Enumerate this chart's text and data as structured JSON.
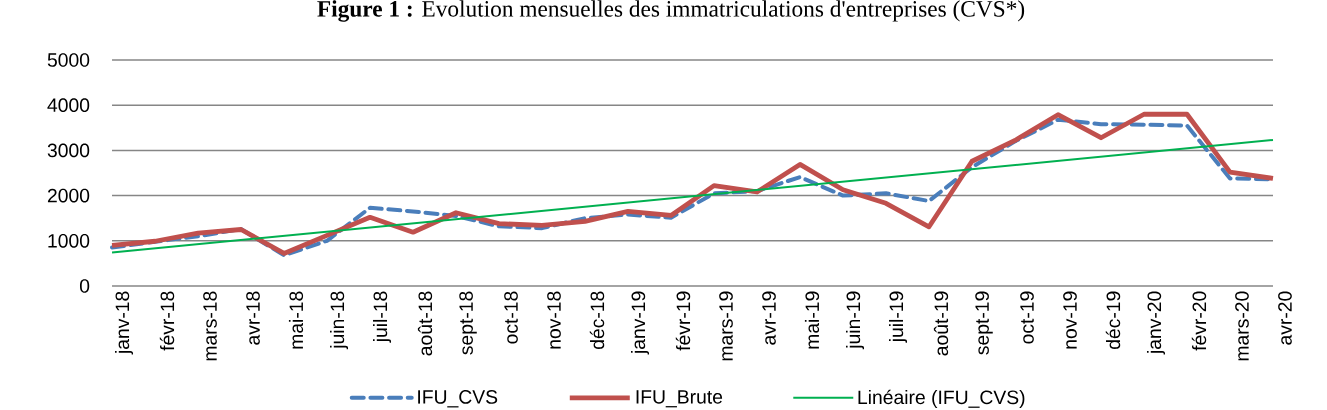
{
  "chart_data": {
    "type": "line",
    "title": "**Figure 1 :** Evolution mensuelles des immatriculations d'entreprises (CVS*)",
    "categories": [
      "janv-18",
      "févr-18",
      "mars-18",
      "avr-18",
      "mai-18",
      "juin-18",
      "juil-18",
      "août-18",
      "sept-18",
      "oct-18",
      "nov-18",
      "déc-18",
      "janv-19",
      "févr-19",
      "mars-19",
      "avr-19",
      "mai-19",
      "juin-19",
      "juil-19",
      "août-19",
      "sept-19",
      "oct-19",
      "nov-19",
      "déc-19",
      "janv-20",
      "févr-20",
      "mars-20",
      "avr-20"
    ],
    "series": [
      {
        "name": "IFU_CVS",
        "color": "#4a7ebb",
        "line_style": "dashed",
        "values": [
          850,
          980,
          1100,
          1260,
          680,
          1000,
          1730,
          1650,
          1550,
          1320,
          1280,
          1500,
          1580,
          1510,
          2050,
          2100,
          2410,
          2000,
          2050,
          1880,
          2630,
          3200,
          3680,
          3580,
          3570,
          3550,
          2380,
          2360
        ]
      },
      {
        "name": "IFU_Brute",
        "color": "#c0504d",
        "line_style": "solid",
        "values": [
          900,
          990,
          1170,
          1250,
          720,
          1120,
          1520,
          1190,
          1620,
          1380,
          1340,
          1430,
          1650,
          1560,
          2220,
          2080,
          2690,
          2130,
          1830,
          1310,
          2760,
          3220,
          3790,
          3280,
          3800,
          3800,
          2520,
          2380
        ]
      },
      {
        "name": "Linéaire (IFU_CVS)",
        "color": "#00b050",
        "line_style": "solid",
        "x": [
          "janv-18",
          "avr-20"
        ],
        "values": [
          740,
          3230
        ]
      }
    ],
    "ylim": [
      0,
      5000
    ],
    "yticks": [
      0,
      1000,
      2000,
      3000,
      4000,
      5000
    ],
    "grid": "y",
    "legend": "bottom",
    "marker": "none"
  }
}
